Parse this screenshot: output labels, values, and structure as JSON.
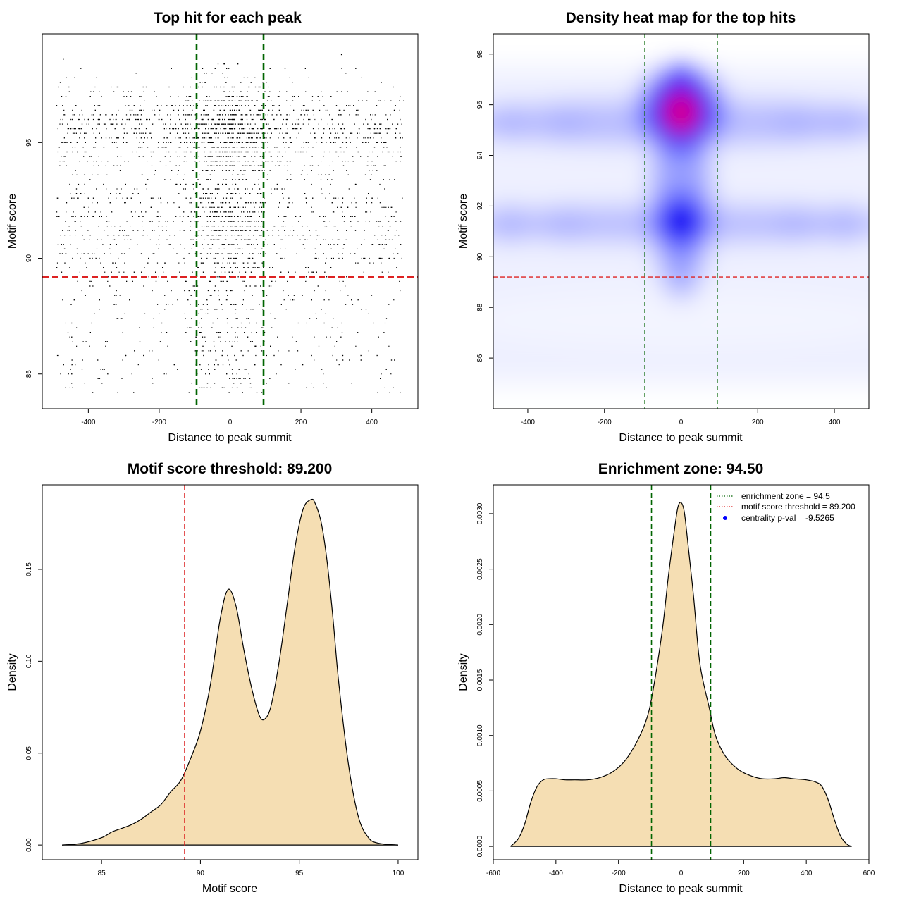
{
  "colors": {
    "zone_line": "#006400",
    "threshold_line": "#dd2222",
    "fill": "#f5deb3",
    "points": "#000000",
    "heat_low": "#ffffff",
    "heat_mid": "#0000ff",
    "heat_high": "#ff0000",
    "legend_dot": "#0000ff"
  },
  "chart_data": [
    {
      "type": "scatter",
      "title": "Top hit for each peak",
      "xlabel": "Distance to peak summit",
      "ylabel": "Motif score",
      "xlim": [
        -530,
        530
      ],
      "ylim": [
        83.5,
        99.7
      ],
      "xticks": [
        -400,
        -200,
        0,
        200,
        400
      ],
      "yticks": [
        85,
        90,
        95
      ],
      "x_range_of_points": [
        -490,
        490
      ],
      "y_range_of_points": [
        84.0,
        99.0
      ],
      "point_density": "dense band between motif scores 90 and 97, densest near distance 0",
      "vlines": [
        -94.5,
        94.5
      ],
      "hline": 89.2
    },
    {
      "type": "heatmap",
      "title": "Density heat map for the top hits",
      "xlabel": "Distance to peak summit",
      "ylabel": "Motif score",
      "xlim": [
        -490,
        490
      ],
      "ylim": [
        84.0,
        98.8
      ],
      "xticks": [
        -400,
        -200,
        0,
        200,
        400
      ],
      "yticks": [
        86,
        88,
        90,
        92,
        94,
        96,
        98
      ],
      "density_peaks": [
        {
          "x": 0,
          "y": 95.8,
          "level": "high"
        },
        {
          "x": 0,
          "y": 91.4,
          "level": "medium"
        }
      ],
      "horizontal_bands": [
        95.3,
        91.3
      ],
      "vlines": [
        -94.5,
        94.5
      ],
      "hline": 89.2
    },
    {
      "type": "area",
      "title": "Motif score threshold: 89.200",
      "xlabel": "Motif score",
      "ylabel": "Density",
      "xlim": [
        82,
        101
      ],
      "ylim": [
        -0.008,
        0.196
      ],
      "xticks": [
        85,
        90,
        95,
        100
      ],
      "yticks": [
        0.0,
        0.05,
        0.1,
        0.15
      ],
      "ytick_labels": [
        "0.00",
        "0.05",
        "0.10",
        "0.15"
      ],
      "x": [
        83.0,
        84.0,
        85.0,
        85.5,
        86.0,
        86.5,
        87.0,
        87.5,
        88.0,
        88.5,
        89.0,
        89.5,
        90.0,
        90.5,
        91.0,
        91.4,
        91.8,
        92.2,
        92.6,
        93.0,
        93.3,
        93.6,
        94.0,
        94.4,
        94.8,
        95.2,
        95.6,
        95.8,
        96.1,
        96.4,
        96.7,
        97.0,
        97.5,
        98.0,
        98.5,
        99.0,
        100.0
      ],
      "y": [
        0.0,
        0.001,
        0.004,
        0.007,
        0.009,
        0.011,
        0.014,
        0.018,
        0.022,
        0.029,
        0.035,
        0.047,
        0.062,
        0.087,
        0.123,
        0.139,
        0.13,
        0.106,
        0.085,
        0.07,
        0.069,
        0.077,
        0.101,
        0.132,
        0.163,
        0.183,
        0.188,
        0.186,
        0.176,
        0.155,
        0.124,
        0.088,
        0.043,
        0.015,
        0.004,
        0.001,
        0.0
      ],
      "vline": 89.2
    },
    {
      "type": "area",
      "title": "Enrichment zone: 94.50",
      "xlabel": "Distance to peak summit",
      "ylabel": "Density",
      "xlim": [
        -600,
        600
      ],
      "ylim": [
        -0.00012,
        0.00326
      ],
      "xticks": [
        -600,
        -400,
        -200,
        0,
        200,
        400,
        600
      ],
      "yticks": [
        0.0,
        0.0005,
        0.001,
        0.0015,
        0.002,
        0.0025,
        0.003
      ],
      "ytick_labels": [
        "0.0000",
        "0.0005",
        "0.0010",
        "0.0015",
        "0.0020",
        "0.0025",
        "0.0030"
      ],
      "x": [
        -545,
        -520,
        -500,
        -480,
        -460,
        -440,
        -420,
        -400,
        -370,
        -340,
        -300,
        -260,
        -220,
        -180,
        -140,
        -110,
        -90,
        -60,
        -40,
        -20,
        -10,
        0,
        10,
        20,
        40,
        60,
        90,
        110,
        140,
        180,
        220,
        260,
        300,
        330,
        360,
        400,
        430,
        450,
        470,
        490,
        510,
        530,
        545
      ],
      "y": [
        0.0,
        7e-05,
        0.0002,
        0.0004,
        0.00054,
        0.0006,
        0.00061,
        0.00061,
        0.0006,
        0.0006,
        0.0006,
        0.00062,
        0.00067,
        0.00077,
        0.00095,
        0.00115,
        0.0014,
        0.00195,
        0.00245,
        0.00288,
        0.00306,
        0.0031,
        0.00302,
        0.00278,
        0.00225,
        0.00165,
        0.00125,
        0.001,
        0.00082,
        0.0007,
        0.00064,
        0.00061,
        0.00061,
        0.00062,
        0.00061,
        0.0006,
        0.00058,
        0.00054,
        0.00042,
        0.00024,
        9e-05,
        2e-05,
        0.0
      ],
      "vlines": [
        -94.5,
        94.5
      ],
      "legend": {
        "position": "top-right",
        "entries": [
          {
            "label": "enrichment zone = 94.5",
            "style": "dotted-line",
            "color": "#006400"
          },
          {
            "label": "motif score threshold = 89.200",
            "style": "dotted-line",
            "color": "#dd2222"
          },
          {
            "label": "centrality p-val = -9.5265",
            "style": "dot",
            "color": "#0000ff"
          }
        ]
      }
    }
  ]
}
